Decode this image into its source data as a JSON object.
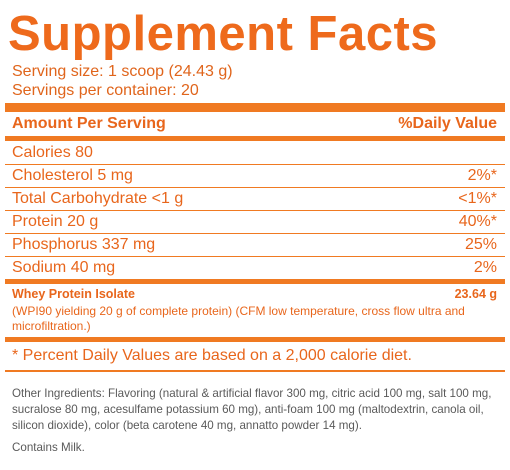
{
  "title": "Supplement Facts",
  "serving": {
    "size": "Serving size: 1 scoop (24.43 g)",
    "per_container": "Servings per container: 20"
  },
  "header": {
    "amount_label": "Amount Per Serving",
    "dv_label": "%Daily Value"
  },
  "nutrients": [
    {
      "label": "Calories 80",
      "dv": ""
    },
    {
      "label": "Cholesterol  5 mg",
      "dv": "2%*"
    },
    {
      "label": "Total Carbohydrate  <1 g",
      "dv": "<1%*"
    },
    {
      "label": "Protein  20 g",
      "dv": "40%*"
    },
    {
      "label": "Phosphorus  337 mg",
      "dv": "25%"
    },
    {
      "label": "Sodium  40 mg",
      "dv": "2%"
    }
  ],
  "whey": {
    "label": "Whey Protein Isolate",
    "amount": "23.64 g",
    "note": "(WPI90 yielding 20 g of complete protein) (CFM low temperature, cross flow ultra and microfiltration.)"
  },
  "footnote": "* Percent Daily Values are based on a 2,000 calorie diet.",
  "ingredients": "Other Ingredients: Flavoring (natural & artificial flavor 300 mg, citric acid 100 mg, salt 100 mg,  sucralose 80 mg, acesulfame potassium 60 mg), anti-foam 100 mg (maltodextrin, canola oil, silicon dioxide), color (beta carotene 40 mg, annatto powder 14 mg).",
  "contains": "Contains Milk.",
  "colors": {
    "accent": "#f07a22",
    "text_orange": "#e8661c",
    "text_gray": "#5a5a5a"
  }
}
